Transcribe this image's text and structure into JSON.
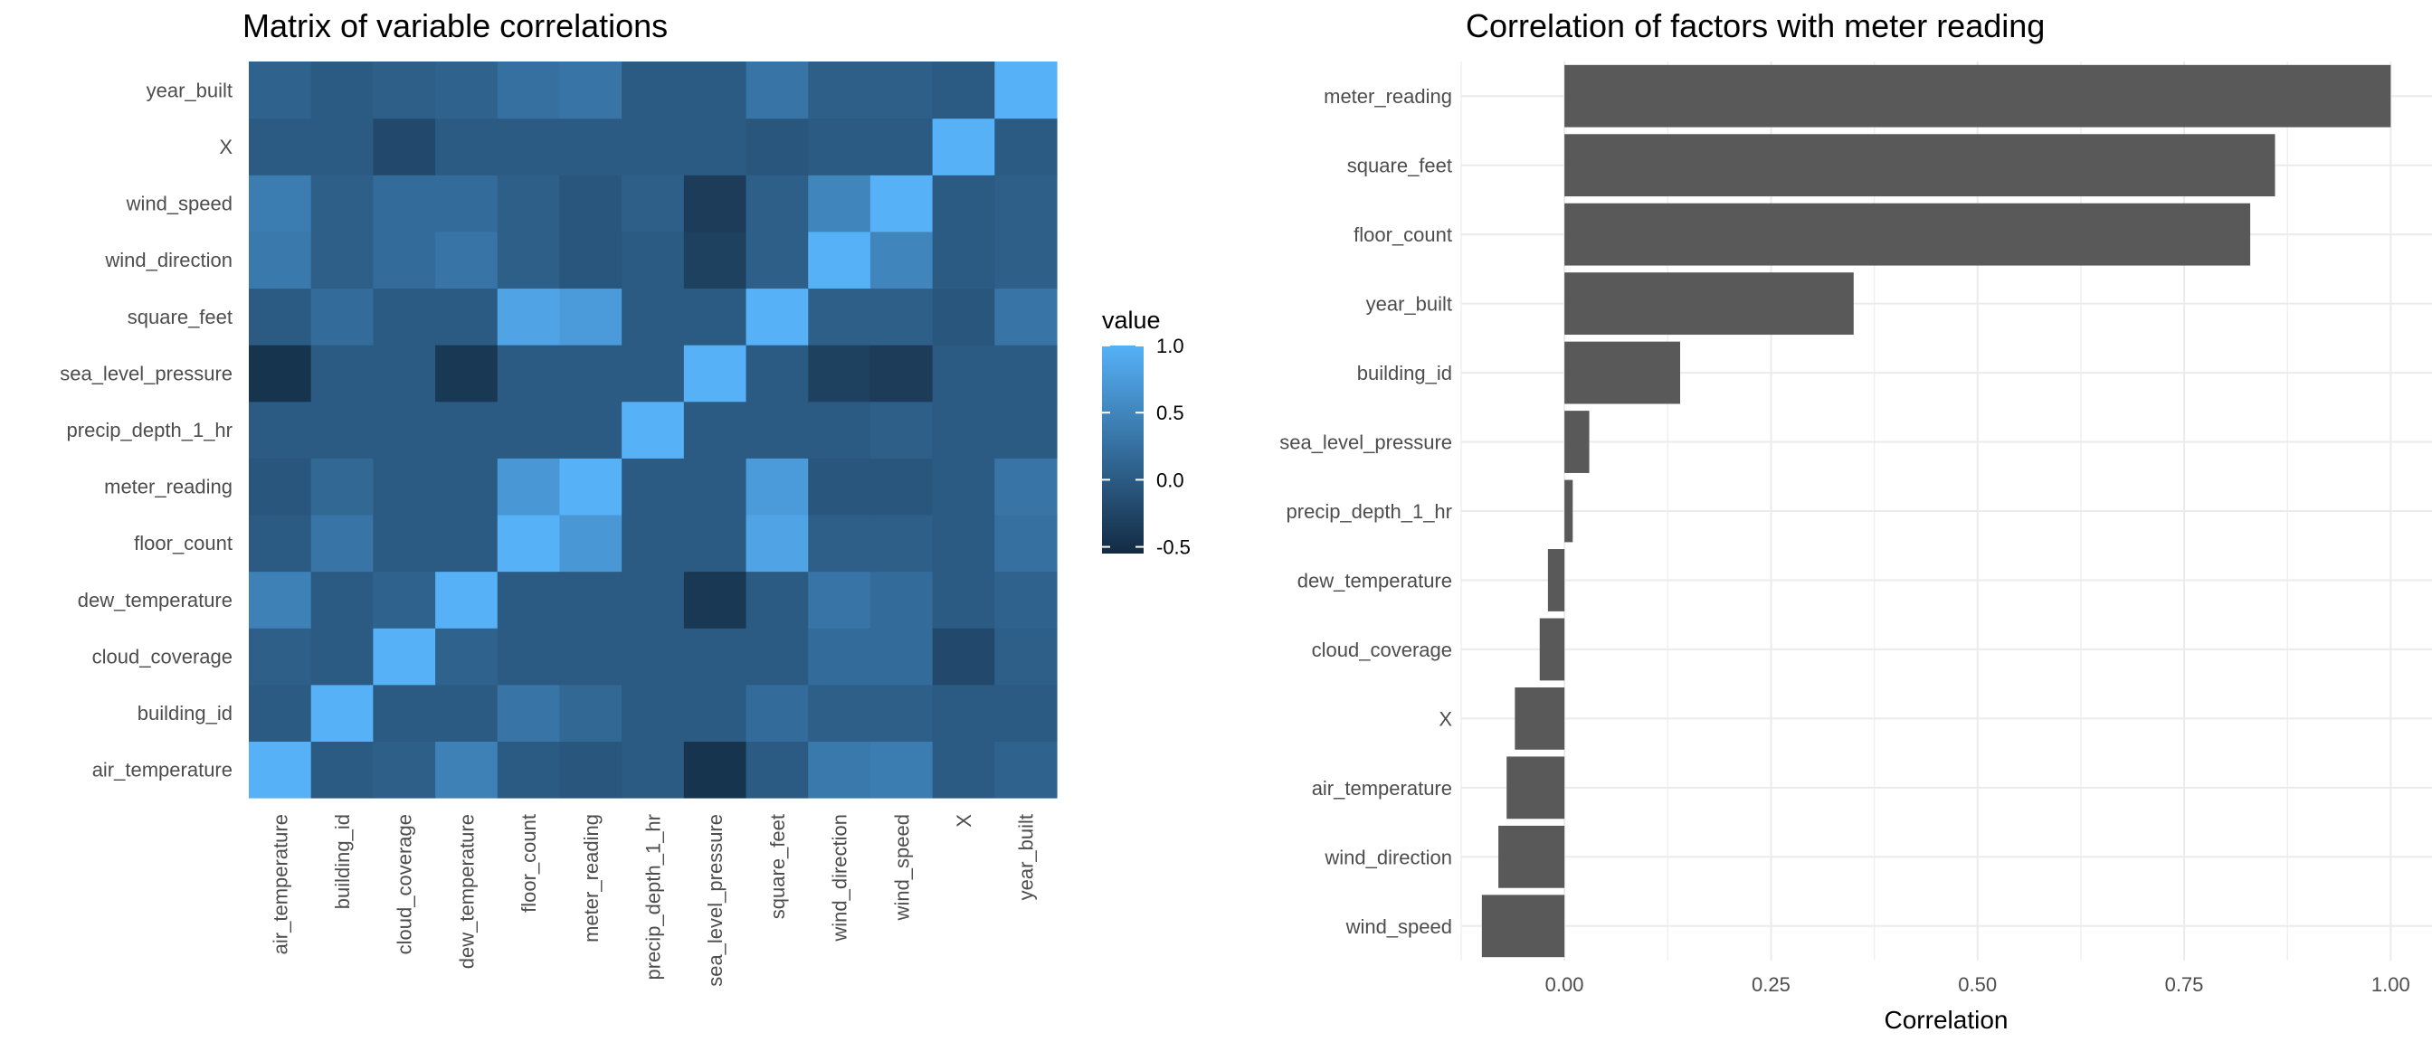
{
  "chart_data": [
    {
      "type": "heatmap",
      "title": "Matrix of variable correlations",
      "x_categories": [
        "air_temperature",
        "building_id",
        "cloud_coverage",
        "dew_temperature",
        "floor_count",
        "meter_reading",
        "precip_depth_1_hr",
        "sea_level_pressure",
        "square_feet",
        "wind_direction",
        "wind_speed",
        "X",
        "year_built"
      ],
      "y_categories": [
        "air_temperature",
        "building_id",
        "cloud_coverage",
        "dew_temperature",
        "floor_count",
        "meter_reading",
        "precip_depth_1_hr",
        "sea_level_pressure",
        "square_feet",
        "wind_direction",
        "wind_speed",
        "X",
        "year_built"
      ],
      "values": [
        [
          1.0,
          0.0,
          0.05,
          0.45,
          0.0,
          -0.05,
          0.0,
          -0.45,
          0.0,
          0.35,
          0.4,
          0.0,
          0.1
        ],
        [
          0.0,
          1.0,
          0.0,
          0.0,
          0.3,
          0.15,
          0.0,
          0.0,
          0.2,
          0.05,
          0.05,
          0.0,
          0.0
        ],
        [
          0.05,
          0.0,
          1.0,
          0.1,
          0.0,
          0.0,
          0.0,
          0.0,
          0.0,
          0.2,
          0.2,
          -0.2,
          0.05
        ],
        [
          0.45,
          0.0,
          0.1,
          1.0,
          0.0,
          0.0,
          0.0,
          -0.4,
          0.0,
          0.3,
          0.2,
          0.0,
          0.1
        ],
        [
          0.0,
          0.3,
          0.0,
          0.0,
          1.0,
          0.7,
          0.0,
          0.0,
          0.85,
          0.05,
          0.05,
          0.0,
          0.25
        ],
        [
          -0.05,
          0.15,
          0.0,
          0.0,
          0.7,
          1.0,
          0.0,
          0.0,
          0.75,
          -0.05,
          -0.05,
          0.0,
          0.3
        ],
        [
          0.0,
          0.0,
          0.0,
          0.0,
          0.0,
          0.0,
          1.0,
          0.0,
          0.0,
          0.0,
          0.05,
          0.0,
          0.0
        ],
        [
          -0.45,
          0.0,
          0.0,
          -0.4,
          0.0,
          0.0,
          0.0,
          1.0,
          0.0,
          -0.3,
          -0.35,
          0.0,
          0.0
        ],
        [
          0.0,
          0.2,
          0.0,
          0.0,
          0.85,
          0.75,
          0.0,
          0.0,
          1.0,
          0.05,
          0.05,
          -0.05,
          0.3
        ],
        [
          0.35,
          0.05,
          0.2,
          0.3,
          0.05,
          -0.05,
          0.0,
          -0.3,
          0.05,
          1.0,
          0.5,
          0.0,
          0.05
        ],
        [
          0.4,
          0.05,
          0.2,
          0.2,
          0.05,
          -0.05,
          0.05,
          -0.35,
          0.05,
          0.5,
          1.0,
          0.0,
          0.05
        ],
        [
          0.0,
          0.0,
          -0.2,
          0.0,
          0.0,
          0.0,
          0.0,
          0.0,
          -0.05,
          0.0,
          0.0,
          1.0,
          0.0
        ],
        [
          0.1,
          0.0,
          0.05,
          0.1,
          0.25,
          0.3,
          0.0,
          0.0,
          0.3,
          0.05,
          0.05,
          0.0,
          1.0
        ]
      ],
      "color_scale": {
        "low": "#132B43",
        "high": "#56B1F7",
        "min": -0.55,
        "max": 1.0
      },
      "legend": {
        "title": "value",
        "ticks": [
          "1.0",
          "0.5",
          "0.0",
          "-0.5"
        ],
        "tick_values": [
          1.0,
          0.5,
          0.0,
          -0.5
        ],
        "placement": "right"
      }
    },
    {
      "type": "bar",
      "orientation": "horizontal",
      "title": "Correlation of factors with meter reading",
      "xlabel": "Correlation",
      "categories": [
        "meter_reading",
        "square_feet",
        "floor_count",
        "year_built",
        "building_id",
        "sea_level_pressure",
        "precip_depth_1_hr",
        "dew_temperature",
        "cloud_coverage",
        "X",
        "air_temperature",
        "wind_direction",
        "wind_speed"
      ],
      "values": [
        1.0,
        0.86,
        0.83,
        0.35,
        0.14,
        0.03,
        0.01,
        -0.02,
        -0.03,
        -0.06,
        -0.07,
        -0.08,
        -0.1
      ],
      "x_ticks": [
        "0.00",
        "0.25",
        "0.50",
        "0.75",
        "1.00"
      ],
      "x_tick_values": [
        0.0,
        0.25,
        0.5,
        0.75,
        1.0
      ],
      "xlim": [
        -0.125,
        1.05
      ],
      "bar_color": "#595959",
      "grid": true
    }
  ]
}
